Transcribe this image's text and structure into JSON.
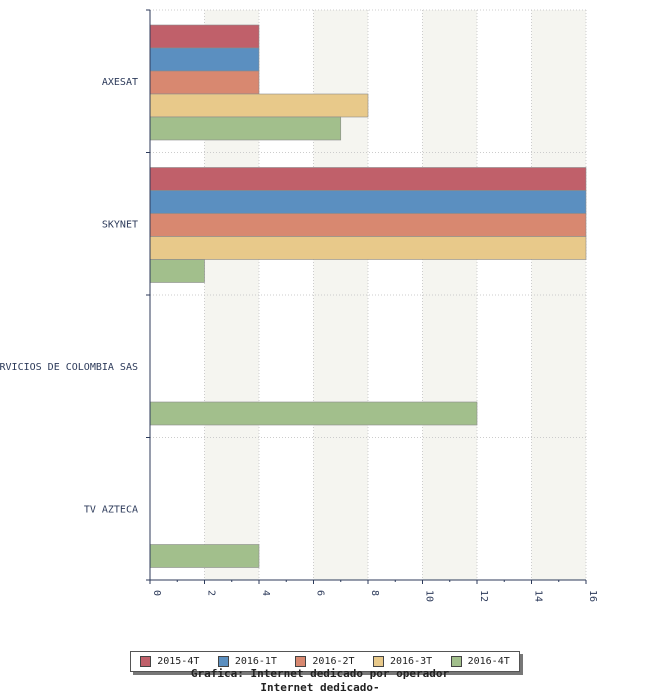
{
  "chart_data": {
    "type": "bar",
    "orientation": "horizontal",
    "categories": [
      "AXESAT",
      "SKYNET",
      "RVICIOS DE COLOMBIA SAS",
      "TV AZTECA"
    ],
    "series": [
      {
        "name": "2015-4T",
        "color": "#c0606a",
        "values": [
          4,
          16,
          0,
          0
        ]
      },
      {
        "name": "2016-1T",
        "color": "#5b8fc0",
        "values": [
          4,
          16,
          0,
          0
        ]
      },
      {
        "name": "2016-2T",
        "color": "#d88870",
        "values": [
          4,
          16,
          0,
          0
        ]
      },
      {
        "name": "2016-3T",
        "color": "#e8c98a",
        "values": [
          8,
          16,
          0,
          0
        ]
      },
      {
        "name": "2016-4T",
        "color": "#a2bf8c",
        "values": [
          7,
          2,
          12,
          4
        ]
      }
    ],
    "xlim": [
      0,
      16
    ],
    "xticks": [
      "0",
      "2",
      "4",
      "6",
      "8",
      "10",
      "12",
      "14",
      "16"
    ],
    "grid": true,
    "legend_position": "bottom",
    "title": "Grafica: Internet dedicado por operador",
    "subtitle": "Internet dedicado-"
  }
}
